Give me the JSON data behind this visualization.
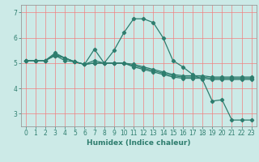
{
  "title": "",
  "xlabel": "Humidex (Indice chaleur)",
  "bg_color": "#cceae7",
  "grid_color": "#f08080",
  "line_color": "#2e7d6e",
  "xlim": [
    -0.5,
    23.5
  ],
  "ylim": [
    2.5,
    7.3
  ],
  "yticks": [
    3,
    4,
    5,
    6,
    7
  ],
  "xticks": [
    0,
    1,
    2,
    3,
    4,
    5,
    6,
    7,
    8,
    9,
    10,
    11,
    12,
    13,
    14,
    15,
    16,
    17,
    18,
    19,
    20,
    21,
    22,
    23
  ],
  "lines": [
    {
      "x": [
        0,
        1,
        2,
        3,
        4,
        5,
        6,
        7,
        8,
        9,
        10,
        11,
        12,
        13,
        14,
        15,
        16,
        17,
        18,
        19,
        20,
        21,
        22,
        23
      ],
      "y": [
        5.1,
        5.1,
        5.1,
        5.3,
        5.2,
        5.05,
        4.95,
        5.1,
        5.0,
        5.5,
        6.2,
        6.75,
        6.75,
        6.6,
        6.0,
        5.1,
        4.85,
        4.55,
        4.35,
        3.5,
        3.55,
        2.75,
        2.75,
        2.75
      ]
    },
    {
      "x": [
        0,
        1,
        2,
        3,
        4,
        5,
        6,
        7,
        8,
        9,
        10,
        11,
        12,
        13,
        14,
        15,
        16,
        17,
        18,
        19,
        20,
        21,
        22,
        23
      ],
      "y": [
        5.1,
        5.1,
        5.1,
        5.4,
        5.2,
        5.05,
        4.95,
        5.55,
        5.0,
        5.0,
        5.0,
        4.95,
        4.85,
        4.75,
        4.65,
        4.55,
        4.5,
        4.5,
        4.5,
        4.45,
        4.45,
        4.45,
        4.45,
        4.45
      ]
    },
    {
      "x": [
        0,
        1,
        2,
        3,
        4,
        5,
        6,
        7,
        8,
        9,
        10,
        11,
        12,
        13,
        14,
        15,
        16,
        17,
        18,
        19,
        20,
        21,
        22,
        23
      ],
      "y": [
        5.1,
        5.1,
        5.1,
        5.35,
        5.2,
        5.05,
        4.95,
        5.0,
        5.0,
        5.0,
        5.0,
        4.9,
        4.8,
        4.7,
        4.6,
        4.5,
        4.45,
        4.45,
        4.45,
        4.4,
        4.4,
        4.4,
        4.4,
        4.4
      ]
    },
    {
      "x": [
        0,
        1,
        2,
        3,
        4,
        5,
        6,
        7,
        8,
        9,
        10,
        11,
        12,
        13,
        14,
        15,
        16,
        17,
        18,
        19,
        20,
        21,
        22,
        23
      ],
      "y": [
        5.1,
        5.1,
        5.1,
        5.3,
        5.1,
        5.05,
        4.95,
        5.0,
        5.0,
        5.0,
        5.0,
        4.85,
        4.75,
        4.65,
        4.55,
        4.45,
        4.4,
        4.4,
        4.4,
        4.35,
        4.35,
        4.35,
        4.35,
        4.35
      ]
    }
  ],
  "tick_fontsize": 5.5,
  "xlabel_fontsize": 6.5
}
